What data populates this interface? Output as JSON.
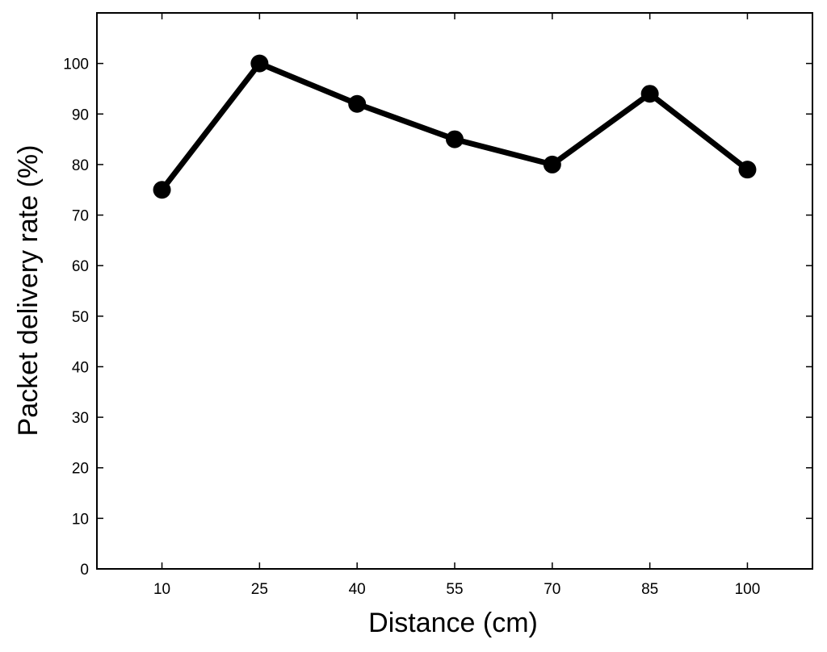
{
  "chart_data": {
    "type": "line",
    "title": "",
    "xlabel": "Distance (cm)",
    "ylabel": "Packet delivery rate (%)",
    "x": [
      10,
      25,
      40,
      55,
      70,
      85,
      100
    ],
    "xtick_labels": [
      "10",
      "25",
      "40",
      "55",
      "70",
      "85",
      "100"
    ],
    "ytick_labels": [
      "0",
      "10",
      "20",
      "30",
      "40",
      "50",
      "60",
      "70",
      "80",
      "90",
      "100"
    ],
    "yticks": [
      0,
      10,
      20,
      30,
      40,
      50,
      60,
      70,
      80,
      90,
      100
    ],
    "xlim": [
      0,
      110
    ],
    "ylim": [
      0,
      110
    ],
    "grid": false,
    "series": [
      {
        "values": [
          75,
          100,
          92,
          85,
          80,
          94,
          79
        ],
        "color": "#000000",
        "marker": "circle"
      }
    ]
  }
}
